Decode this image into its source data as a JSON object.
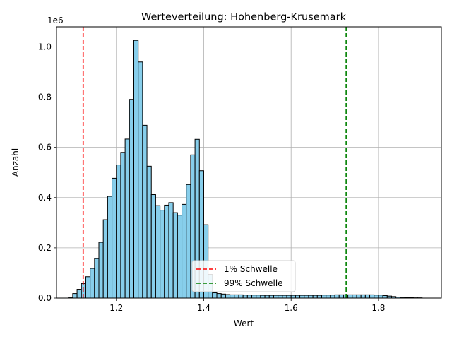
{
  "chart_data": {
    "type": "bar",
    "title": "Werteverteilung: Hohenberg-Krusemark",
    "xlabel": "Wert",
    "ylabel": "Anzahl",
    "y_offset_label": "1e6",
    "xlim": [
      1.063,
      1.944
    ],
    "ylim": [
      0,
      1.08
    ],
    "grid": true,
    "bar_color": "#87ceeb",
    "bar_edge_color": "#000000",
    "bin_width": 0.01,
    "bin_start": 1.09,
    "x_ticks": [
      1.2,
      1.4,
      1.6,
      1.8
    ],
    "x_tick_labels": [
      "1.2",
      "1.4",
      "1.6",
      "1.8"
    ],
    "y_ticks": [
      0.0,
      0.2,
      0.4,
      0.6,
      0.8,
      1.0
    ],
    "y_tick_labels": [
      "0.0",
      "0.2",
      "0.4",
      "0.6",
      "0.8",
      "1.0"
    ],
    "values": [
      0.003,
      0.018,
      0.035,
      0.058,
      0.085,
      0.118,
      0.157,
      0.222,
      0.312,
      0.405,
      0.477,
      0.53,
      0.58,
      0.633,
      0.791,
      1.026,
      0.94,
      0.688,
      0.525,
      0.412,
      0.368,
      0.35,
      0.37,
      0.38,
      0.34,
      0.33,
      0.373,
      0.452,
      0.57,
      0.632,
      0.507,
      0.292,
      0.094,
      0.021,
      0.018,
      0.016,
      0.014,
      0.013,
      0.013,
      0.013,
      0.012,
      0.012,
      0.012,
      0.012,
      0.011,
      0.011,
      0.011,
      0.011,
      0.011,
      0.011,
      0.011,
      0.011,
      0.011,
      0.011,
      0.011,
      0.011,
      0.011,
      0.011,
      0.012,
      0.012,
      0.012,
      0.013,
      0.013,
      0.013,
      0.013,
      0.013,
      0.013,
      0.013,
      0.013,
      0.013,
      0.012,
      0.012,
      0.01,
      0.008,
      0.006,
      0.004,
      0.003,
      0.002,
      0.002,
      0.001,
      0.001
    ],
    "reference_lines": [
      {
        "name": "1% Schwelle",
        "x": 1.124,
        "color": "#ff0000"
      },
      {
        "name": "99% Schwelle",
        "x": 1.726,
        "color": "#008000"
      }
    ],
    "legend_position": "lower center"
  }
}
